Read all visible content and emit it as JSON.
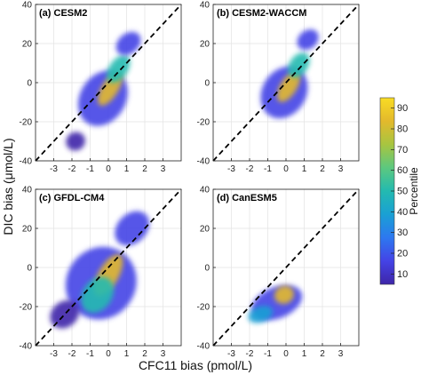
{
  "chart_data": {
    "type": "heatmap",
    "xlabel": "CFC11 bias (pmol/L)",
    "ylabel": "DIC bias (μmol/L)",
    "xlim": [
      -4,
      4
    ],
    "ylim": [
      -40,
      40
    ],
    "xticks": [
      -3,
      -2,
      -1,
      0,
      1,
      2,
      3
    ],
    "yticks": [
      -40,
      -20,
      0,
      20,
      40
    ],
    "reference_line": "1:1 dashed diagonal",
    "grid": true,
    "colorbar": {
      "label": "Percentile",
      "range": [
        5,
        95
      ],
      "ticks": [
        10,
        20,
        30,
        40,
        50,
        60,
        70,
        80,
        90
      ],
      "colormap": "parula",
      "colors": [
        "#3e26a8",
        "#4443e6",
        "#2d78f0",
        "#1aa0d4",
        "#23bab0",
        "#5cc87f",
        "#a8c540",
        "#e3b92c",
        "#f9dc24"
      ]
    },
    "panels": [
      {
        "title": "(a) CESM2",
        "blobs": [
          {
            "x": -0.3,
            "y": -8,
            "rx": 1.25,
            "ry": 15,
            "rot": 58,
            "v": 20
          },
          {
            "x": 0.1,
            "y": -3,
            "rx": 0.45,
            "ry": 10,
            "rot": 58,
            "v": 82
          },
          {
            "x": 0.55,
            "y": 7,
            "rx": 0.5,
            "ry": 8,
            "rot": 55,
            "v": 45
          },
          {
            "x": -1.8,
            "y": -30,
            "rx": 0.5,
            "ry": 5,
            "rot": 30,
            "v": 10
          },
          {
            "x": 1.1,
            "y": 20,
            "rx": 0.55,
            "ry": 7,
            "rot": 40,
            "v": 12
          }
        ]
      },
      {
        "title": "(b) CESM2-WACCM",
        "blobs": [
          {
            "x": -0.1,
            "y": -5,
            "rx": 1.2,
            "ry": 14,
            "rot": 58,
            "v": 20
          },
          {
            "x": 0.15,
            "y": -2,
            "rx": 0.45,
            "ry": 9,
            "rot": 58,
            "v": 82
          },
          {
            "x": 0.7,
            "y": 9,
            "rx": 0.5,
            "ry": 7,
            "rot": 55,
            "v": 45
          },
          {
            "x": 1.2,
            "y": 22,
            "rx": 0.5,
            "ry": 6,
            "rot": 40,
            "v": 12
          }
        ]
      },
      {
        "title": "(c) GFDL-CM4",
        "blobs": [
          {
            "x": -0.4,
            "y": -8,
            "rx": 1.9,
            "ry": 19,
            "rot": 55,
            "v": 18
          },
          {
            "x": 0.0,
            "y": -4,
            "rx": 0.55,
            "ry": 12,
            "rot": 60,
            "v": 82
          },
          {
            "x": -0.6,
            "y": -14,
            "rx": 0.8,
            "ry": 10,
            "rot": 55,
            "v": 45
          },
          {
            "x": 1.3,
            "y": 20,
            "rx": 0.8,
            "ry": 10,
            "rot": 45,
            "v": 12
          },
          {
            "x": -2.4,
            "y": -24,
            "rx": 0.7,
            "ry": 8,
            "rot": 40,
            "v": 10
          }
        ]
      },
      {
        "title": "(d) CanESM5",
        "blobs": [
          {
            "x": -0.5,
            "y": -18,
            "rx": 1.45,
            "ry": 8,
            "rot": 22,
            "v": 20
          },
          {
            "x": -0.1,
            "y": -14,
            "rx": 0.55,
            "ry": 4.5,
            "rot": 25,
            "v": 82
          },
          {
            "x": -1.4,
            "y": -24,
            "rx": 0.7,
            "ry": 4,
            "rot": 20,
            "v": 35
          }
        ]
      }
    ]
  }
}
